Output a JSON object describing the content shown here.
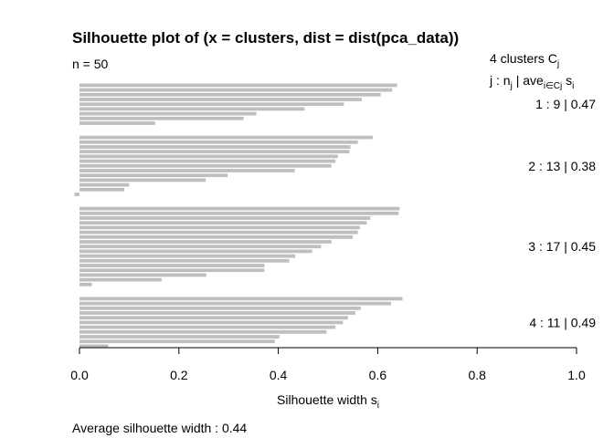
{
  "chart_data": {
    "type": "bar",
    "orientation": "horizontal",
    "title": "Silhouette plot of (x = clusters, dist = dist(pca_data))",
    "n_label": "n = 50",
    "xlabel": "Silhouette width s",
    "xlabel_sub": "i",
    "xlim": [
      0,
      1
    ],
    "x_ticks": [
      0,
      0.2,
      0.4,
      0.6,
      0.8,
      1
    ],
    "x_tick_labels": [
      "0.0",
      "0.2",
      "0.4",
      "0.6",
      "0.8",
      "1.0"
    ],
    "header": {
      "line1_main": "4  clusters  C",
      "line1_sub": "j",
      "line2_a": "j :  n",
      "line2_a_sub": "j",
      "line2_b": " | ave",
      "line2_b_sub": "i∈Cj",
      "line2_c": "  s",
      "line2_c_sub": "i"
    },
    "footer": "Average silhouette width :  0.44",
    "bar_color": "#bebebe",
    "clusters": [
      {
        "label": "1 :   9  |  0.47",
        "widths": [
          0.639,
          0.629,
          0.606,
          0.568,
          0.532,
          0.453,
          0.356,
          0.33,
          0.152
        ]
      },
      {
        "label": "2 :   13  |  0.38",
        "widths": [
          0.59,
          0.56,
          0.545,
          0.543,
          0.52,
          0.515,
          0.507,
          0.433,
          0.298,
          0.254,
          0.1,
          0.09,
          -0.01
        ]
      },
      {
        "label": "3 :   17  |  0.45",
        "widths": [
          0.644,
          0.642,
          0.585,
          0.578,
          0.564,
          0.56,
          0.55,
          0.507,
          0.486,
          0.468,
          0.434,
          0.422,
          0.372,
          0.372,
          0.255,
          0.165,
          0.025
        ]
      },
      {
        "label": "4 :   11  |  0.49",
        "widths": [
          0.65,
          0.627,
          0.566,
          0.555,
          0.54,
          0.53,
          0.515,
          0.497,
          0.402,
          0.393,
          0.058
        ]
      }
    ]
  }
}
